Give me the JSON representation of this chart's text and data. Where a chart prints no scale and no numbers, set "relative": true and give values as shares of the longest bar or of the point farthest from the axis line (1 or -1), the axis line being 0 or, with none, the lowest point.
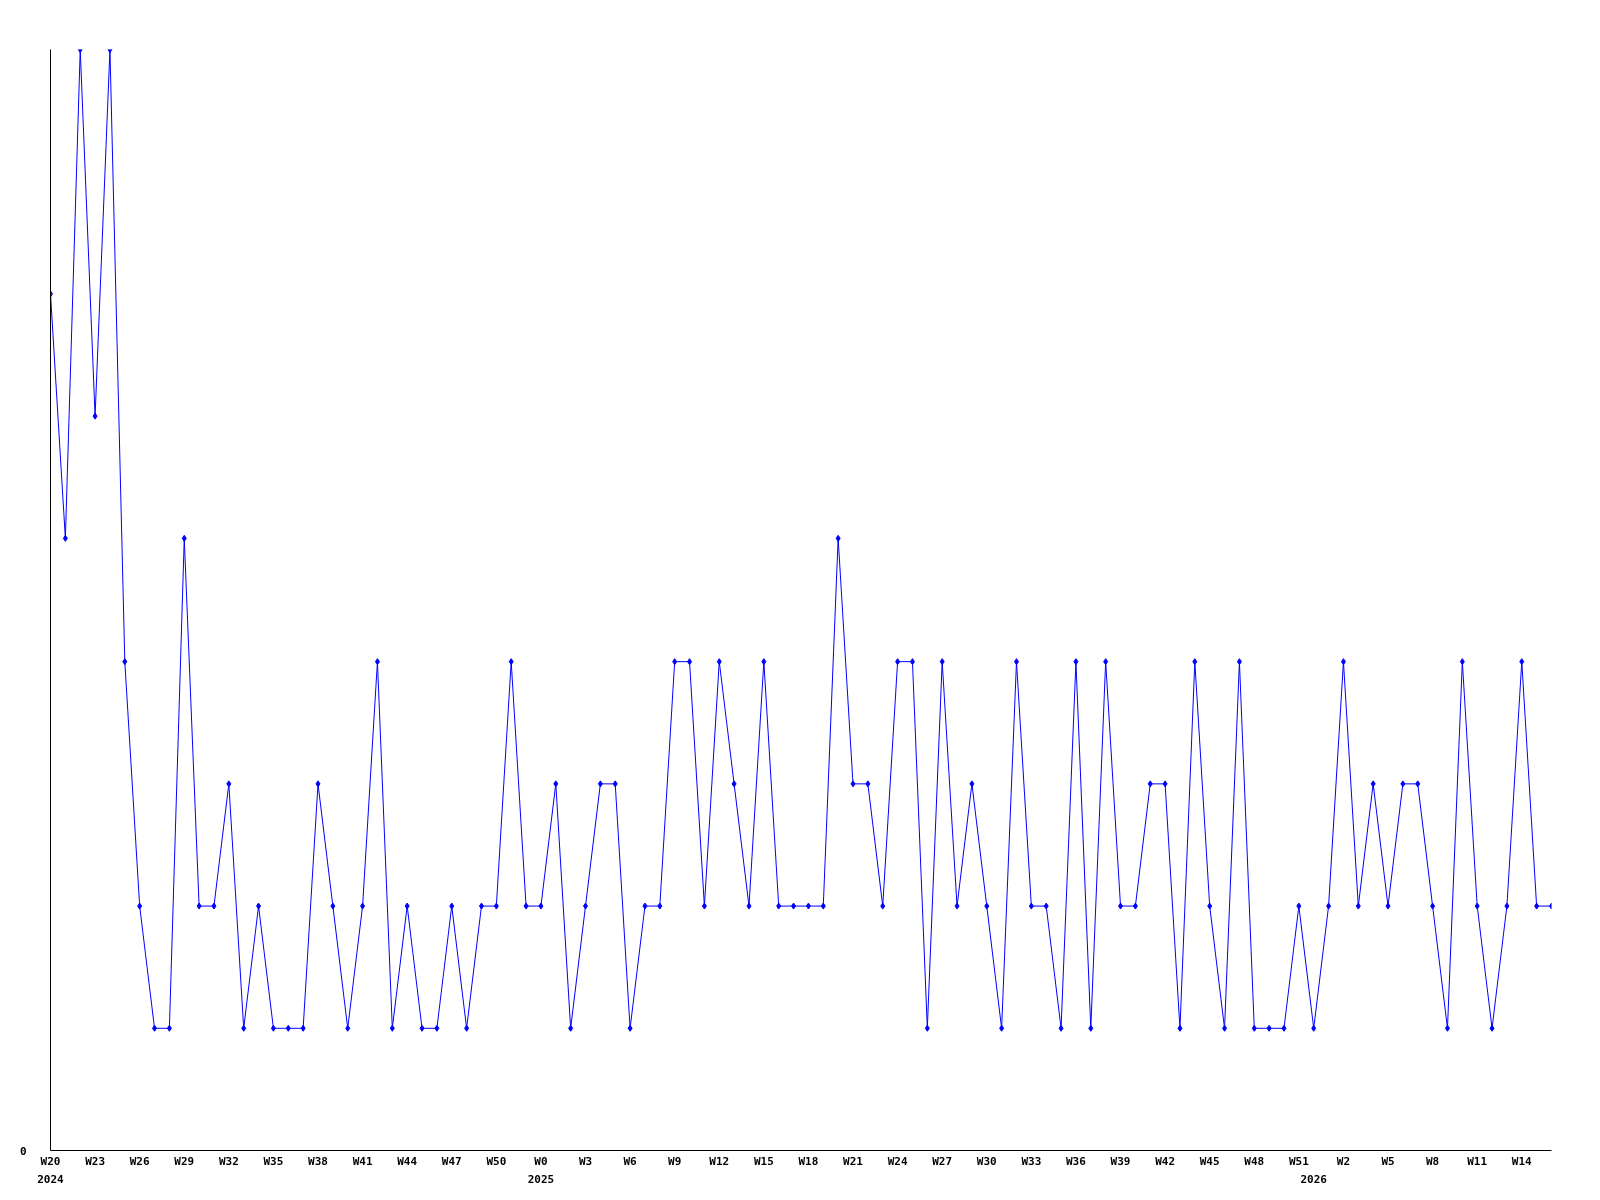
{
  "chart_data": {
    "type": "line",
    "relative": true,
    "marker": "diamond",
    "annotations": [
      "0"
    ],
    "categories": [
      "W20\n2024",
      null,
      null,
      "W23",
      null,
      null,
      "W26",
      null,
      null,
      "W29",
      null,
      null,
      "W32",
      null,
      null,
      "W35",
      null,
      null,
      "W38",
      null,
      null,
      "W41",
      null,
      null,
      "W44",
      null,
      null,
      "W47",
      null,
      null,
      "W50",
      null,
      null,
      "W0\n2025",
      null,
      null,
      "W3",
      null,
      null,
      "W6",
      null,
      null,
      "W9",
      null,
      null,
      "W12",
      null,
      null,
      "W15",
      null,
      null,
      "W18",
      null,
      null,
      "W21",
      null,
      null,
      "W24",
      null,
      null,
      "W27",
      null,
      null,
      "W30",
      null,
      null,
      "W33",
      null,
      null,
      "W36",
      null,
      null,
      "W39",
      null,
      null,
      "W42",
      null,
      null,
      "W45",
      null,
      null,
      "W48",
      null,
      null,
      "W51",
      "\n2026",
      null,
      "W2",
      null,
      null,
      "W5",
      null,
      null,
      "W8",
      null,
      null,
      "W11",
      null,
      null,
      "W14",
      null,
      null
    ],
    "series": [
      {
        "color": "#0000ff",
        "values": [
          0.778,
          0.556,
          1,
          0.667,
          1,
          0.444,
          0.222,
          0.111,
          0.111,
          0.556,
          0.222,
          0.222,
          0.333,
          0.111,
          0.222,
          0.111,
          0.111,
          0.111,
          0.333,
          0.222,
          0.111,
          0.222,
          0.444,
          0.111,
          0.222,
          0.111,
          0.111,
          0.222,
          0.111,
          0.222,
          0.222,
          0.444,
          0.222,
          0.222,
          0.333,
          0.111,
          0.222,
          0.333,
          0.333,
          0.111,
          0.222,
          0.222,
          0.444,
          0.444,
          0.222,
          0.444,
          0.333,
          0.222,
          0.444,
          0.222,
          0.222,
          0.222,
          0.222,
          0.556,
          0.333,
          0.333,
          0.222,
          0.444,
          0.444,
          0.111,
          0.444,
          0.222,
          0.333,
          0.222,
          0.111,
          0.444,
          0.222,
          0.222,
          0.111,
          0.444,
          0.111,
          0.444,
          0.222,
          0.222,
          0.333,
          0.333,
          0.111,
          0.444,
          0.222,
          0.111,
          0.444,
          0.111,
          0.111,
          0.111,
          0.222,
          0.111,
          0.222,
          0.444,
          0.222,
          0.333,
          0.222,
          0.333,
          0.333,
          0.222,
          0.111,
          0.444,
          0.222,
          0.111,
          0.222,
          0.444,
          0.222,
          0.222
        ]
      }
    ]
  }
}
